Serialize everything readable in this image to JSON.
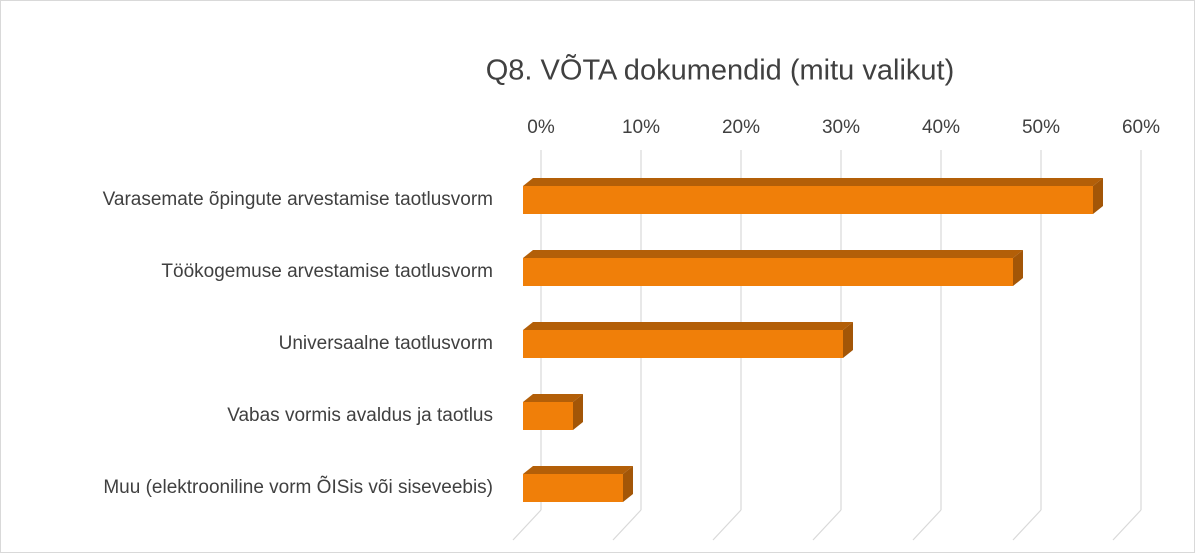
{
  "chart_data": {
    "type": "bar",
    "orientation": "horizontal",
    "title": "Q8. VÕTA dokumendid (mitu valikut)",
    "categories": [
      "Varasemate õpingute arvestamise taotlusvorm",
      "Töökogemuse arvestamise taotlusvorm",
      "Universaalne taotlusvorm",
      "Vabas vormis avaldus ja taotlus",
      "Muu (elektrooniline vorm ÕISis või siseveebis)"
    ],
    "values": [
      57,
      49,
      32,
      5,
      10
    ],
    "color": "#f07f09",
    "xlim": [
      0,
      60
    ],
    "xticks": [
      {
        "value": 0,
        "label": "0%"
      },
      {
        "value": 10,
        "label": "10%"
      },
      {
        "value": 20,
        "label": "20%"
      },
      {
        "value": 30,
        "label": "30%"
      },
      {
        "value": 40,
        "label": "40%"
      },
      {
        "value": 50,
        "label": "50%"
      },
      {
        "value": 60,
        "label": "60%"
      }
    ],
    "grid": true
  }
}
